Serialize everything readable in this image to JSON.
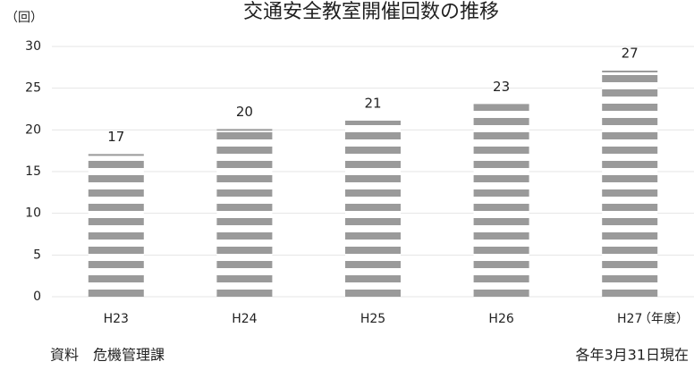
{
  "chart_data": {
    "type": "bar",
    "title": "交通安全教室開催回数の推移",
    "y_label": "（回）",
    "x_label": "（年度）",
    "categories": [
      "H23",
      "H24",
      "H25",
      "H26",
      "H27"
    ],
    "values": [
      17,
      20,
      21,
      23,
      27
    ],
    "color": "#9a9a9a",
    "ylim": [
      0,
      30
    ],
    "yticks": [
      0,
      5,
      10,
      15,
      20,
      25,
      30
    ],
    "grid": true,
    "source": "資料　危機管理課",
    "note": "各年3月31日現在"
  }
}
